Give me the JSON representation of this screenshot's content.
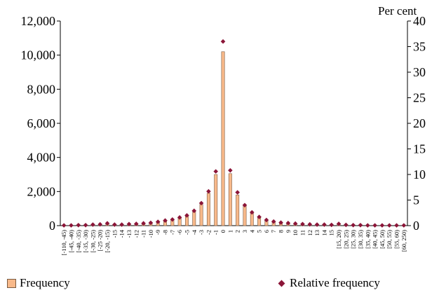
{
  "chart_data": {
    "type": "bar",
    "categories": [
      "[-110, -45)",
      "[-45, -40)",
      "[-40, -35)",
      "[-35, -30)",
      "[-30, -25)",
      "[-25 -20)",
      "[-20, -15)",
      "-15",
      "-14",
      "-13",
      "-12",
      "-11",
      "-10",
      "-9",
      "-8",
      "-7",
      "-6",
      "-5",
      "-4",
      "-3",
      "-2",
      "-1",
      "0",
      "1",
      "2",
      "3",
      "4",
      "5",
      "6",
      "7",
      "8",
      "9",
      "10",
      "11",
      "12",
      "13",
      "14",
      "15",
      "[15, 20)",
      "[20, 25)",
      "[25, 30)",
      "[30, 35)",
      "[35, 40)",
      "[40, 45)",
      "[45, 50)",
      "[50, 55)",
      "[55, 60)",
      "[60, 250)"
    ],
    "series": [
      {
        "name": "Frequency",
        "axis": "left",
        "values": [
          10,
          10,
          20,
          20,
          40,
          60,
          110,
          40,
          50,
          70,
          90,
          110,
          140,
          200,
          270,
          330,
          440,
          550,
          800,
          1250,
          1900,
          3000,
          10200,
          3050,
          1800,
          1150,
          730,
          460,
          300,
          220,
          170,
          130,
          100,
          80,
          60,
          55,
          50,
          40,
          90,
          40,
          30,
          20,
          15,
          10,
          10,
          10,
          5,
          10
        ]
      },
      {
        "name": "Relative frequency",
        "axis": "right",
        "values": [
          0.05,
          0.05,
          0.1,
          0.1,
          0.2,
          0.25,
          0.45,
          0.2,
          0.2,
          0.3,
          0.35,
          0.45,
          0.55,
          0.75,
          1.0,
          1.2,
          1.6,
          2.0,
          2.9,
          4.4,
          6.7,
          10.6,
          36.0,
          10.8,
          6.5,
          4.0,
          2.6,
          1.7,
          1.1,
          0.8,
          0.6,
          0.5,
          0.4,
          0.3,
          0.25,
          0.2,
          0.2,
          0.15,
          0.35,
          0.15,
          0.1,
          0.1,
          0.05,
          0.05,
          0.05,
          0.05,
          0.05,
          0.05
        ]
      }
    ],
    "y_left": {
      "ylim": [
        0,
        12000
      ],
      "ticks": [
        "0",
        "2,000",
        "4,000",
        "6,000",
        "8,000",
        "10,000",
        "12,000"
      ]
    },
    "y_right": {
      "label": "Per cent",
      "ylim": [
        0,
        40
      ],
      "ticks": [
        "0",
        "5",
        "10",
        "15",
        "20",
        "25",
        "30",
        "35",
        "40"
      ]
    },
    "legend": {
      "placement": "bottom"
    },
    "colors": {
      "bar": "#F8B98A",
      "bar_edge": "#7a5a40",
      "marker": "#8B1538"
    },
    "grid": false
  }
}
